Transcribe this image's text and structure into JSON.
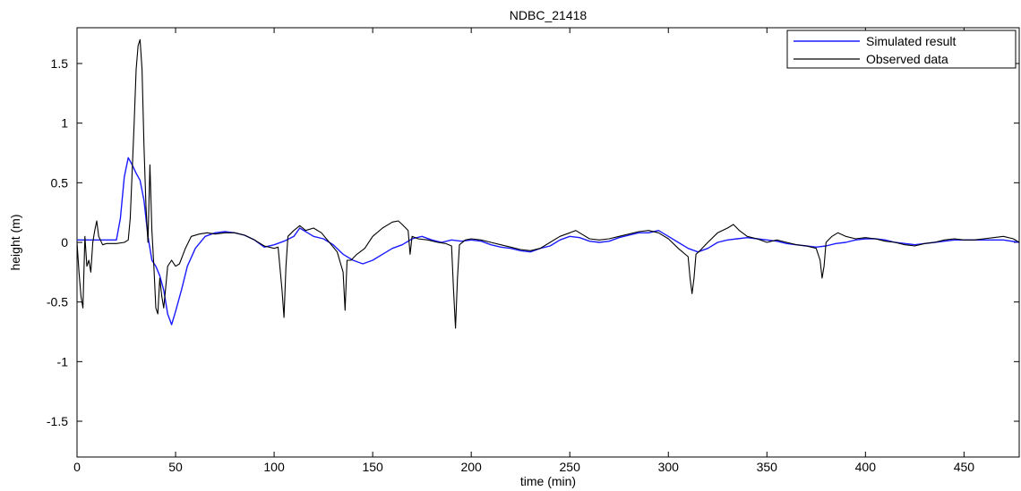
{
  "chart_data": {
    "type": "line",
    "title": "NDBC_21418",
    "xlabel": "time (min)",
    "ylabel": "height (m)",
    "xlim": [
      0,
      478
    ],
    "ylim": [
      -1.8,
      1.8
    ],
    "xticks": [
      0,
      50,
      100,
      150,
      200,
      250,
      300,
      350,
      400,
      450
    ],
    "yticks": [
      -1.5,
      -1,
      -0.5,
      0,
      0.5,
      1,
      1.5
    ],
    "xtick_labels": [
      "0",
      "50",
      "100",
      "150",
      "200",
      "250",
      "300",
      "350",
      "400",
      "450"
    ],
    "ytick_labels": [
      "-1.5",
      "-1",
      "-0.5",
      "0",
      "0.5",
      "1",
      "1.5"
    ],
    "grid": false,
    "legend_position": "top-right",
    "series": [
      {
        "name": "Simulated result",
        "color": "#1a1aff",
        "points": [
          [
            0,
            0.02
          ],
          [
            10,
            0.02
          ],
          [
            20,
            0.02
          ],
          [
            22,
            0.2
          ],
          [
            24,
            0.55
          ],
          [
            26,
            0.71
          ],
          [
            28,
            0.65
          ],
          [
            30,
            0.58
          ],
          [
            32,
            0.52
          ],
          [
            34,
            0.35
          ],
          [
            36,
            0.05
          ],
          [
            38,
            -0.15
          ],
          [
            40,
            -0.2
          ],
          [
            42,
            -0.28
          ],
          [
            44,
            -0.4
          ],
          [
            46,
            -0.6
          ],
          [
            48,
            -0.69
          ],
          [
            50,
            -0.58
          ],
          [
            53,
            -0.4
          ],
          [
            56,
            -0.2
          ],
          [
            60,
            -0.05
          ],
          [
            65,
            0.05
          ],
          [
            70,
            0.08
          ],
          [
            75,
            0.09
          ],
          [
            80,
            0.08
          ],
          [
            85,
            0.06
          ],
          [
            90,
            0.02
          ],
          [
            95,
            -0.04
          ],
          [
            100,
            -0.02
          ],
          [
            105,
            0.01
          ],
          [
            110,
            0.05
          ],
          [
            113,
            0.12
          ],
          [
            117,
            0.08
          ],
          [
            120,
            0.05
          ],
          [
            125,
            0.03
          ],
          [
            130,
            -0.02
          ],
          [
            135,
            -0.1
          ],
          [
            140,
            -0.15
          ],
          [
            145,
            -0.18
          ],
          [
            150,
            -0.15
          ],
          [
            155,
            -0.1
          ],
          [
            160,
            -0.05
          ],
          [
            165,
            -0.02
          ],
          [
            170,
            0.03
          ],
          [
            175,
            0.05
          ],
          [
            180,
            0.02
          ],
          [
            185,
            0.0
          ],
          [
            190,
            0.02
          ],
          [
            195,
            0.01
          ],
          [
            200,
            0.02
          ],
          [
            205,
            0.01
          ],
          [
            210,
            -0.02
          ],
          [
            215,
            -0.04
          ],
          [
            220,
            -0.05
          ],
          [
            225,
            -0.07
          ],
          [
            230,
            -0.08
          ],
          [
            235,
            -0.05
          ],
          [
            240,
            -0.03
          ],
          [
            245,
            0.02
          ],
          [
            250,
            0.05
          ],
          [
            255,
            0.04
          ],
          [
            260,
            0.01
          ],
          [
            265,
            0.0
          ],
          [
            270,
            0.01
          ],
          [
            275,
            0.04
          ],
          [
            280,
            0.06
          ],
          [
            285,
            0.08
          ],
          [
            290,
            0.08
          ],
          [
            295,
            0.1
          ],
          [
            300,
            0.05
          ],
          [
            305,
            0.0
          ],
          [
            310,
            -0.05
          ],
          [
            315,
            -0.08
          ],
          [
            320,
            -0.05
          ],
          [
            325,
            0.0
          ],
          [
            330,
            0.02
          ],
          [
            335,
            0.03
          ],
          [
            340,
            0.04
          ],
          [
            345,
            0.03
          ],
          [
            350,
            0.02
          ],
          [
            355,
            0.01
          ],
          [
            360,
            -0.01
          ],
          [
            365,
            -0.02
          ],
          [
            370,
            -0.03
          ],
          [
            375,
            -0.04
          ],
          [
            380,
            -0.03
          ],
          [
            385,
            -0.01
          ],
          [
            390,
            0.0
          ],
          [
            395,
            0.02
          ],
          [
            400,
            0.03
          ],
          [
            405,
            0.03
          ],
          [
            410,
            0.02
          ],
          [
            415,
            0.0
          ],
          [
            420,
            -0.01
          ],
          [
            425,
            -0.02
          ],
          [
            430,
            -0.01
          ],
          [
            435,
            0.0
          ],
          [
            440,
            0.01
          ],
          [
            445,
            0.02
          ],
          [
            450,
            0.02
          ],
          [
            455,
            0.02
          ],
          [
            460,
            0.02
          ],
          [
            465,
            0.02
          ],
          [
            470,
            0.02
          ],
          [
            478,
            0.0
          ]
        ]
      },
      {
        "name": "Observed data",
        "color": "#000000",
        "points": [
          [
            0,
            0.0
          ],
          [
            1,
            -0.25
          ],
          [
            2,
            -0.45
          ],
          [
            3,
            -0.55
          ],
          [
            4,
            0.05
          ],
          [
            5,
            -0.2
          ],
          [
            6,
            -0.15
          ],
          [
            7,
            -0.25
          ],
          [
            8,
            0.0
          ],
          [
            9,
            0.1
          ],
          [
            10,
            0.18
          ],
          [
            11,
            0.05
          ],
          [
            13,
            -0.02
          ],
          [
            15,
            -0.01
          ],
          [
            20,
            -0.01
          ],
          [
            24,
            0.0
          ],
          [
            26,
            0.02
          ],
          [
            27,
            0.2
          ],
          [
            28,
            0.6
          ],
          [
            29,
            1.0
          ],
          [
            30,
            1.45
          ],
          [
            31,
            1.65
          ],
          [
            32,
            1.7
          ],
          [
            33,
            1.45
          ],
          [
            34,
            0.8
          ],
          [
            35,
            0.3
          ],
          [
            36,
            0.0
          ],
          [
            37,
            0.65
          ],
          [
            38,
            0.1
          ],
          [
            39,
            -0.2
          ],
          [
            40,
            -0.55
          ],
          [
            41,
            -0.6
          ],
          [
            42,
            -0.3
          ],
          [
            43,
            -0.45
          ],
          [
            44,
            -0.55
          ],
          [
            45,
            -0.38
          ],
          [
            46,
            -0.2
          ],
          [
            48,
            -0.15
          ],
          [
            50,
            -0.2
          ],
          [
            52,
            -0.18
          ],
          [
            55,
            -0.05
          ],
          [
            58,
            0.05
          ],
          [
            62,
            0.07
          ],
          [
            66,
            0.08
          ],
          [
            70,
            0.07
          ],
          [
            75,
            0.08
          ],
          [
            80,
            0.08
          ],
          [
            85,
            0.06
          ],
          [
            90,
            0.02
          ],
          [
            95,
            -0.03
          ],
          [
            100,
            -0.05
          ],
          [
            102,
            -0.04
          ],
          [
            104,
            -0.4
          ],
          [
            105,
            -0.63
          ],
          [
            106,
            -0.2
          ],
          [
            107,
            0.05
          ],
          [
            110,
            0.1
          ],
          [
            113,
            0.14
          ],
          [
            116,
            0.1
          ],
          [
            120,
            0.12
          ],
          [
            124,
            0.08
          ],
          [
            128,
            0.0
          ],
          [
            132,
            -0.08
          ],
          [
            135,
            -0.25
          ],
          [
            136,
            -0.57
          ],
          [
            137,
            -0.15
          ],
          [
            139,
            -0.15
          ],
          [
            142,
            -0.1
          ],
          [
            146,
            -0.05
          ],
          [
            150,
            0.05
          ],
          [
            155,
            0.12
          ],
          [
            160,
            0.17
          ],
          [
            163,
            0.18
          ],
          [
            165,
            0.15
          ],
          [
            168,
            0.1
          ],
          [
            169,
            -0.1
          ],
          [
            170,
            0.05
          ],
          [
            173,
            0.03
          ],
          [
            178,
            0.02
          ],
          [
            183,
            0.0
          ],
          [
            187,
            -0.01
          ],
          [
            190,
            -0.03
          ],
          [
            191,
            -0.4
          ],
          [
            192,
            -0.72
          ],
          [
            193,
            -0.3
          ],
          [
            194,
            -0.02
          ],
          [
            197,
            0.02
          ],
          [
            200,
            0.03
          ],
          [
            205,
            0.02
          ],
          [
            210,
            0.0
          ],
          [
            215,
            -0.02
          ],
          [
            220,
            -0.04
          ],
          [
            225,
            -0.06
          ],
          [
            230,
            -0.07
          ],
          [
            235,
            -0.05
          ],
          [
            240,
            0.0
          ],
          [
            245,
            0.05
          ],
          [
            250,
            0.08
          ],
          [
            253,
            0.1
          ],
          [
            256,
            0.07
          ],
          [
            260,
            0.03
          ],
          [
            265,
            0.02
          ],
          [
            270,
            0.03
          ],
          [
            275,
            0.05
          ],
          [
            280,
            0.07
          ],
          [
            285,
            0.09
          ],
          [
            290,
            0.1
          ],
          [
            295,
            0.08
          ],
          [
            300,
            0.03
          ],
          [
            305,
            -0.05
          ],
          [
            310,
            -0.12
          ],
          [
            311,
            -0.3
          ],
          [
            312,
            -0.43
          ],
          [
            313,
            -0.3
          ],
          [
            314,
            -0.1
          ],
          [
            316,
            -0.07
          ],
          [
            320,
            0.0
          ],
          [
            325,
            0.08
          ],
          [
            330,
            0.12
          ],
          [
            333,
            0.15
          ],
          [
            336,
            0.1
          ],
          [
            340,
            0.05
          ],
          [
            345,
            0.03
          ],
          [
            350,
            0.0
          ],
          [
            355,
            0.02
          ],
          [
            360,
            0.0
          ],
          [
            365,
            -0.02
          ],
          [
            370,
            -0.03
          ],
          [
            375,
            -0.05
          ],
          [
            377,
            -0.15
          ],
          [
            378,
            -0.3
          ],
          [
            379,
            -0.2
          ],
          [
            380,
            0.0
          ],
          [
            383,
            0.05
          ],
          [
            386,
            0.08
          ],
          [
            390,
            0.05
          ],
          [
            395,
            0.03
          ],
          [
            400,
            0.04
          ],
          [
            405,
            0.03
          ],
          [
            410,
            0.01
          ],
          [
            415,
            0.0
          ],
          [
            420,
            -0.02
          ],
          [
            425,
            -0.03
          ],
          [
            430,
            -0.01
          ],
          [
            435,
            0.0
          ],
          [
            440,
            0.02
          ],
          [
            445,
            0.03
          ],
          [
            450,
            0.02
          ],
          [
            455,
            0.02
          ],
          [
            460,
            0.03
          ],
          [
            465,
            0.04
          ],
          [
            470,
            0.05
          ],
          [
            475,
            0.03
          ],
          [
            478,
            0.0
          ]
        ]
      }
    ]
  }
}
